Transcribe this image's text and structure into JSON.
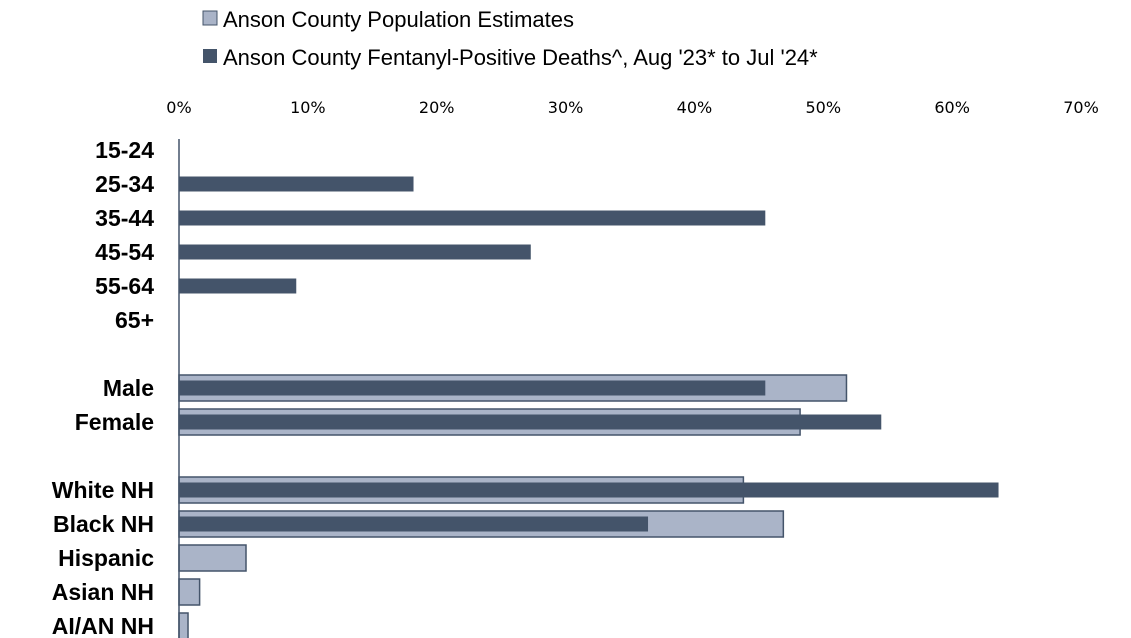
{
  "chart_data": {
    "type": "bar",
    "orientation": "horizontal",
    "x_tick_labels": [
      "0%",
      "10%",
      "20%",
      "30%",
      "40%",
      "50%",
      "60%",
      "70%"
    ],
    "xlim": [
      0,
      70
    ],
    "x_axis_position": "top",
    "grid": false,
    "legend_position": "top",
    "categories": [
      "15-24",
      "25-34",
      "35-44",
      "45-54",
      "55-64",
      "65+",
      "Male",
      "Female",
      "White NH",
      "Black NH",
      "Hispanic",
      "Asian NH",
      "AI/AN NH"
    ],
    "groups": [
      [
        "15-24",
        "25-34",
        "35-44",
        "45-54",
        "55-64",
        "65+"
      ],
      [
        "Male",
        "Female"
      ],
      [
        "White NH",
        "Black NH",
        "Hispanic",
        "Asian NH",
        "AI/AN NH"
      ]
    ],
    "series": [
      {
        "name": "Anson County Population Estimates",
        "color": "#aab4c8",
        "values": [
          null,
          null,
          null,
          null,
          null,
          null,
          51.8,
          48.2,
          43.8,
          46.9,
          5.2,
          1.6,
          0.7
        ]
      },
      {
        "name": "Anson County Fentanyl-Positive Deaths^, Aug '23* to Jul '24*",
        "color": "#44546a",
        "values": [
          null,
          18.2,
          45.5,
          27.3,
          9.1,
          null,
          45.5,
          54.5,
          63.6,
          36.4,
          null,
          null,
          null
        ]
      }
    ]
  }
}
